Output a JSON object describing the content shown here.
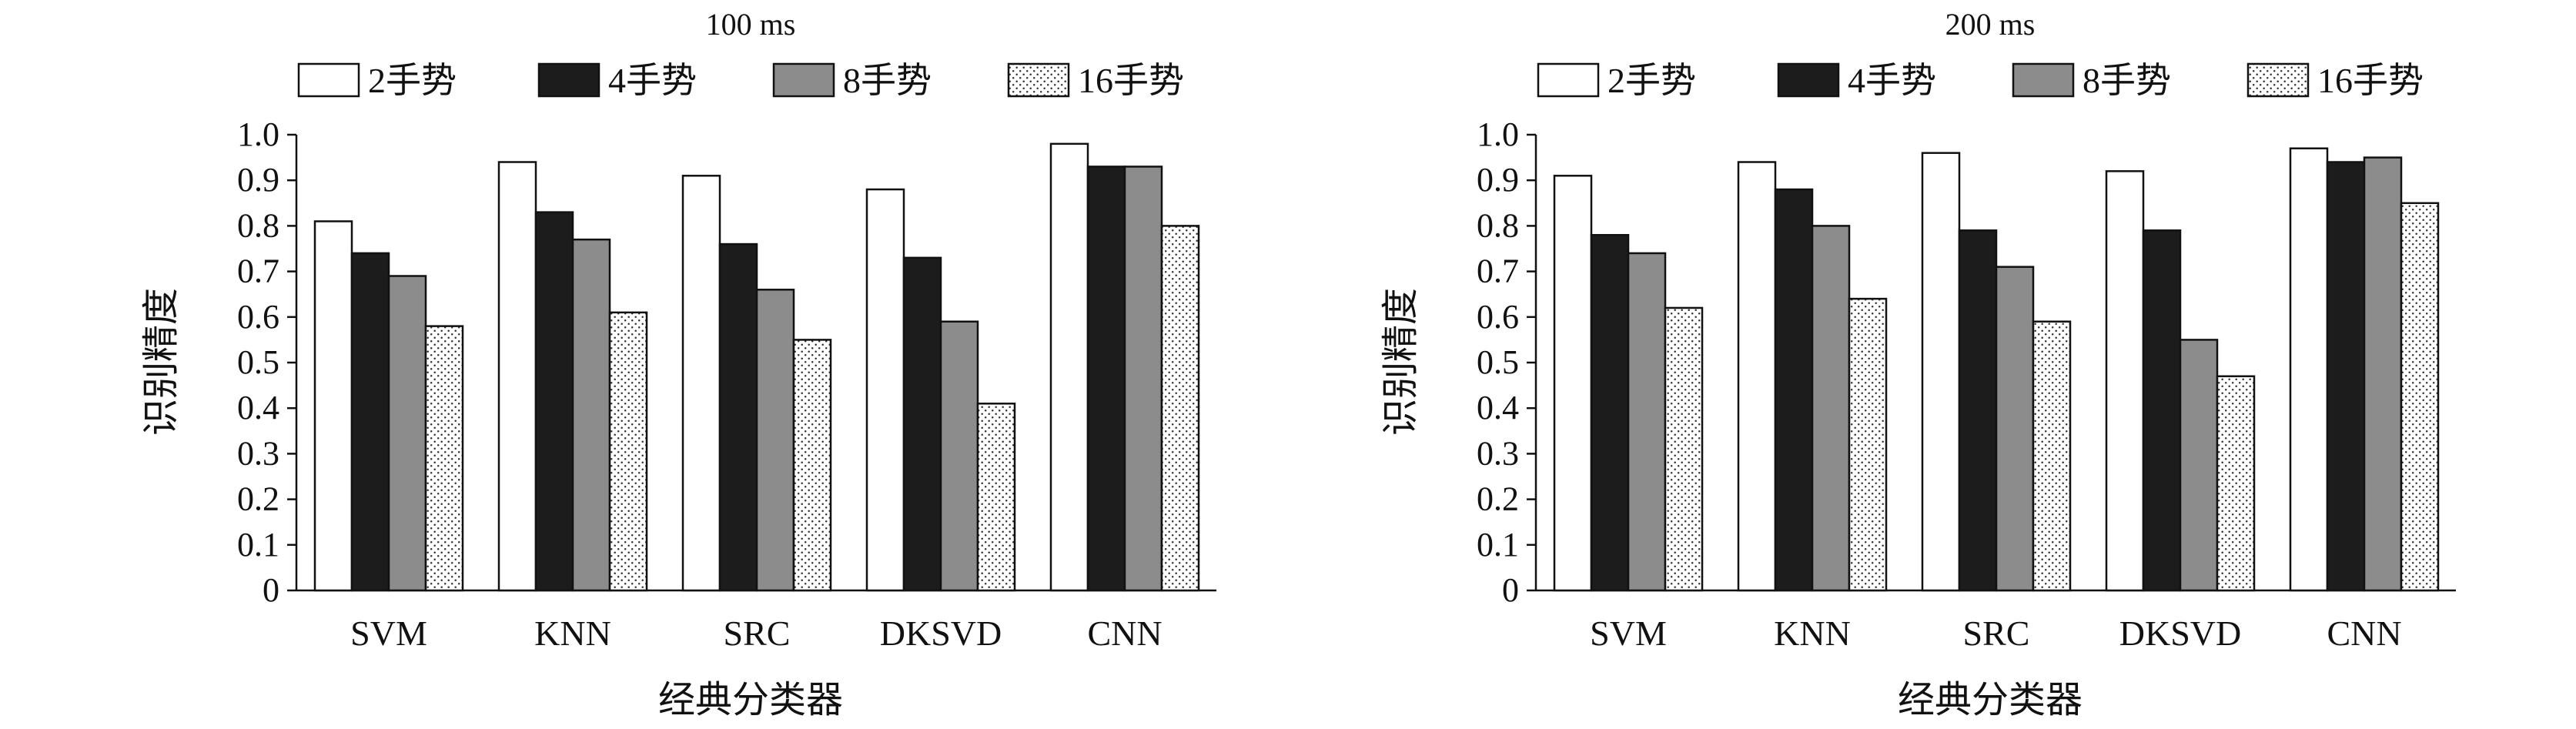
{
  "chart_data": [
    {
      "type": "bar",
      "title": "100 ms",
      "xlabel": "经典分类器",
      "ylabel": "识别精度",
      "ylim": [
        0,
        1.0
      ],
      "yticks": [
        "0",
        "0.1",
        "0.2",
        "0.3",
        "0.4",
        "0.5",
        "0.6",
        "0.7",
        "0.8",
        "0.9",
        "1.0"
      ],
      "legend_position": "top",
      "categories": [
        "SVM",
        "KNN",
        "SRC",
        "DKSVD",
        "CNN"
      ],
      "series": [
        {
          "name": "2手势",
          "values": [
            0.81,
            0.94,
            0.91,
            0.88,
            0.98
          ]
        },
        {
          "name": "4手势",
          "values": [
            0.74,
            0.83,
            0.76,
            0.73,
            0.93
          ]
        },
        {
          "name": "8手势",
          "values": [
            0.69,
            0.77,
            0.66,
            0.59,
            0.93
          ]
        },
        {
          "name": "16手势",
          "values": [
            0.58,
            0.61,
            0.55,
            0.41,
            0.8
          ]
        }
      ]
    },
    {
      "type": "bar",
      "title": "200 ms",
      "xlabel": "经典分类器",
      "ylabel": "识别精度",
      "ylim": [
        0,
        1.0
      ],
      "yticks": [
        "0",
        "0.1",
        "0.2",
        "0.3",
        "0.4",
        "0.5",
        "0.6",
        "0.7",
        "0.8",
        "0.9",
        "1.0"
      ],
      "legend_position": "top",
      "categories": [
        "SVM",
        "KNN",
        "SRC",
        "DKSVD",
        "CNN"
      ],
      "series": [
        {
          "name": "2手势",
          "values": [
            0.91,
            0.94,
            0.96,
            0.92,
            0.97
          ]
        },
        {
          "name": "4手势",
          "values": [
            0.78,
            0.88,
            0.79,
            0.79,
            0.94
          ]
        },
        {
          "name": "8手势",
          "values": [
            0.74,
            0.8,
            0.71,
            0.55,
            0.95
          ]
        },
        {
          "name": "16手势",
          "values": [
            0.62,
            0.64,
            0.59,
            0.47,
            0.85
          ]
        }
      ]
    }
  ],
  "series_styles": [
    {
      "fill": "#ffffff",
      "pattern": "none"
    },
    {
      "fill": "#1c1c1c",
      "pattern": "none"
    },
    {
      "fill": "#8c8c8c",
      "pattern": "none"
    },
    {
      "fill": "#ffffff",
      "pattern": "dots"
    }
  ]
}
